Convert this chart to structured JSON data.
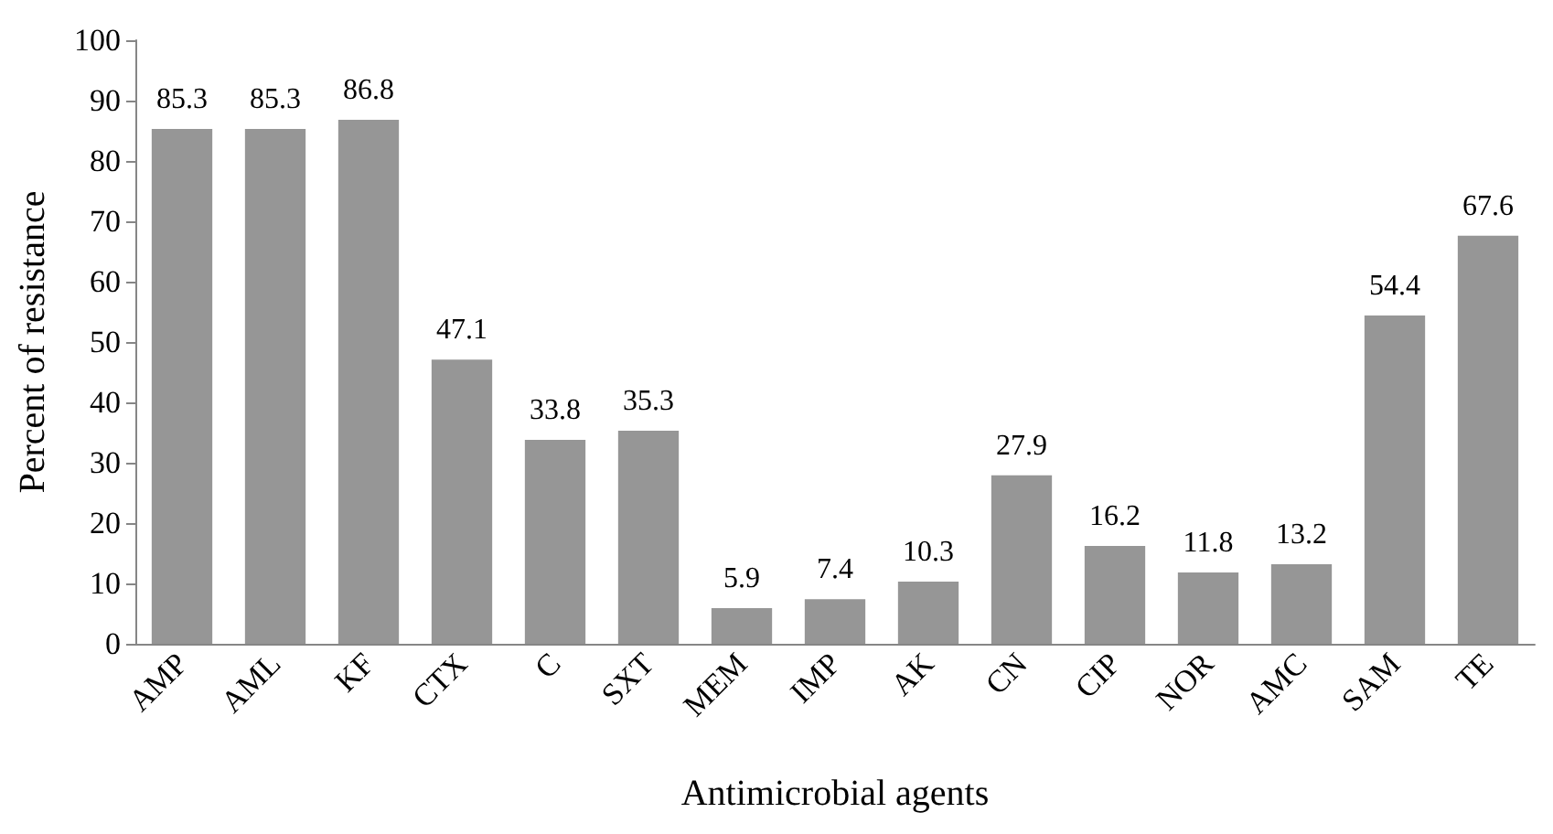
{
  "chart_data": {
    "type": "bar",
    "xlabel": "Antimicrobial agents",
    "ylabel": "Percent of resistance",
    "categories": [
      "AMP",
      "AML",
      "KF",
      "CTX",
      "C",
      "SXT",
      "MEM",
      "IMP",
      "AK",
      "CN",
      "CIP",
      "NOR",
      "AMC",
      "SAM",
      "TE"
    ],
    "values": [
      85.3,
      85.3,
      86.8,
      47.1,
      33.8,
      35.3,
      5.9,
      7.4,
      10.3,
      27.9,
      16.2,
      11.8,
      13.2,
      54.4,
      67.6
    ],
    "color": "#969696",
    "ylim": [
      0,
      100
    ],
    "yticks": [
      0,
      10,
      20,
      30,
      40,
      50,
      60,
      70,
      80,
      90,
      100
    ],
    "grid": false,
    "data_labels": true
  }
}
